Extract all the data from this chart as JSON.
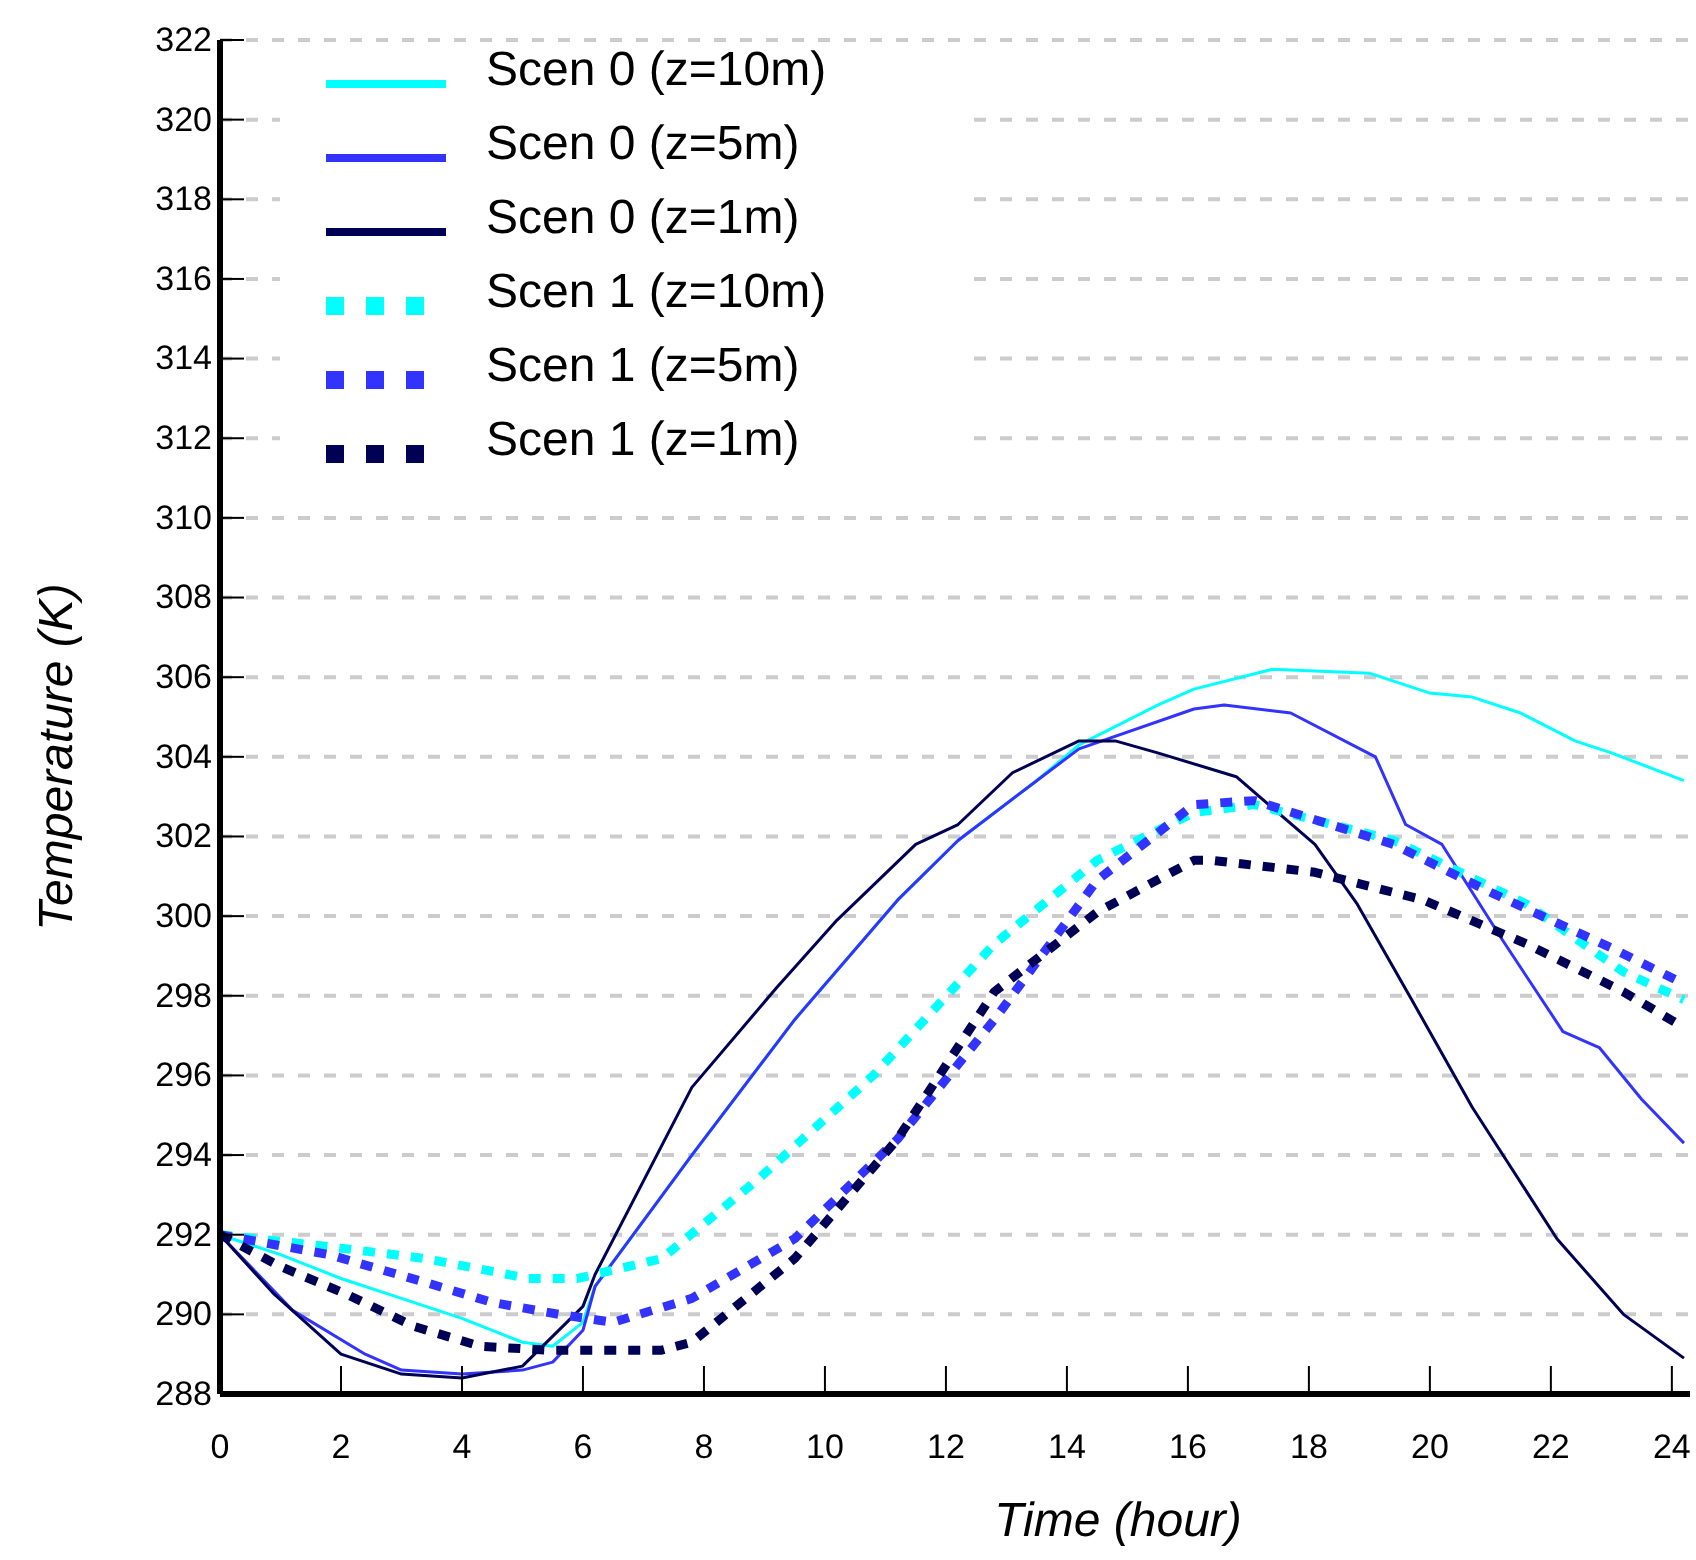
{
  "chart_data": {
    "type": "line",
    "xlabel": "Time (hour)",
    "ylabel": "Temperature (K)",
    "xlim": [
      0,
      24.3
    ],
    "ylim": [
      288,
      322
    ],
    "xticks": [
      0,
      2,
      4,
      6,
      8,
      10,
      12,
      14,
      16,
      18,
      20,
      22,
      24
    ],
    "yticks": [
      288,
      290,
      292,
      294,
      296,
      298,
      300,
      302,
      304,
      306,
      308,
      310,
      312,
      314,
      316,
      318,
      320,
      322
    ],
    "grid": "y",
    "legend": "top left",
    "series": [
      {
        "name": "Scen 0 (z=10m)",
        "color": "#00ffff",
        "line_style": "solid",
        "x": [
          0,
          1,
          2,
          3,
          4,
          5,
          5.5,
          6,
          6.2,
          7.8,
          9.5,
          11.2,
          12.2,
          13.5,
          14.2,
          15.5,
          16.1,
          17.4,
          19,
          20,
          20.7,
          21.5,
          22.4,
          23,
          24.2
        ],
        "values": [
          292,
          291.5,
          290.9,
          290.4,
          289.9,
          289.3,
          289.2,
          289.8,
          290.7,
          294,
          297.4,
          300.4,
          301.9,
          303.4,
          304.3,
          305.3,
          305.7,
          306.2,
          306.1,
          305.6,
          305.5,
          305.1,
          304.4,
          304.1,
          303.4
        ]
      },
      {
        "name": "Scen 0 (z=5m)",
        "color": "#3333ff",
        "line_style": "solid",
        "x": [
          0,
          1.2,
          2.4,
          3,
          4,
          5,
          5.5,
          6,
          6.2,
          7.8,
          9.5,
          11.2,
          12.2,
          13.5,
          14.2,
          16.1,
          16.6,
          17.7,
          19.1,
          19.6,
          20.2,
          21.2,
          22.2,
          22.8,
          23.5,
          24.2
        ],
        "values": [
          292,
          290.1,
          289,
          288.6,
          288.5,
          288.6,
          288.8,
          289.6,
          290.7,
          294,
          297.4,
          300.4,
          301.9,
          303.4,
          304.2,
          305.2,
          305.3,
          305.1,
          304,
          302.3,
          301.8,
          299.4,
          297.1,
          296.7,
          295.4,
          294.3
        ]
      },
      {
        "name": "Scen 0 (z=1m)",
        "color": "#000055",
        "line_style": "solid",
        "x": [
          0,
          0.9,
          2,
          3,
          4,
          5,
          6,
          6.2,
          7.8,
          9.2,
          10.2,
          11.5,
          12.2,
          13.1,
          14.2,
          14.8,
          15.5,
          16.8,
          18.1,
          18.8,
          19.7,
          20.7,
          22.1,
          23.2,
          24.2
        ],
        "values": [
          292,
          290.5,
          289,
          288.5,
          288.4,
          288.7,
          290.2,
          291,
          295.7,
          298.2,
          299.9,
          301.8,
          302.3,
          303.6,
          304.4,
          304.4,
          304.1,
          303.5,
          301.8,
          300.3,
          297.9,
          295.2,
          291.9,
          290,
          288.9
        ]
      },
      {
        "name": "Scen 1 (z=10m)",
        "color": "#00ffff",
        "line_style": "dotted",
        "x": [
          0,
          1.8,
          3.4,
          5.1,
          5.9,
          7.3,
          8.9,
          10.8,
          12.8,
          14.5,
          16.1,
          17.1,
          19.4,
          21.6,
          23.2,
          24.2
        ],
        "values": [
          292,
          291.7,
          291.4,
          290.9,
          290.9,
          291.4,
          293.4,
          296,
          299.3,
          301.4,
          302.6,
          302.8,
          301.9,
          300.3,
          298.6,
          297.9
        ]
      },
      {
        "name": "Scen 1 (z=5m)",
        "color": "#3333ff",
        "line_style": "dotted",
        "x": [
          0,
          1.8,
          3.4,
          4.5,
          5.6,
          6.5,
          7.8,
          9.5,
          11.2,
          12.8,
          14.5,
          16.1,
          17.1,
          19.4,
          21,
          23,
          24.2
        ],
        "values": [
          292,
          291.5,
          290.8,
          290.3,
          290,
          289.8,
          290.4,
          291.9,
          294.4,
          297.4,
          300.9,
          302.8,
          302.9,
          301.8,
          300.6,
          299.2,
          298.3
        ]
      },
      {
        "name": "Scen 1 (z=1m)",
        "color": "#000055",
        "line_style": "dotted",
        "x": [
          0,
          1,
          2.1,
          3.2,
          4.3,
          5.4,
          7.3,
          7.8,
          9.5,
          11.2,
          12.8,
          14.5,
          16.1,
          16.4,
          18.1,
          19.9,
          21.6,
          23.2,
          24.2
        ],
        "values": [
          292,
          291.2,
          290.5,
          289.7,
          289.2,
          289.1,
          289.1,
          289.3,
          291.4,
          294.4,
          298.1,
          300.1,
          301.4,
          301.4,
          301.1,
          300.4,
          299.3,
          298.1,
          297.2
        ]
      }
    ]
  }
}
